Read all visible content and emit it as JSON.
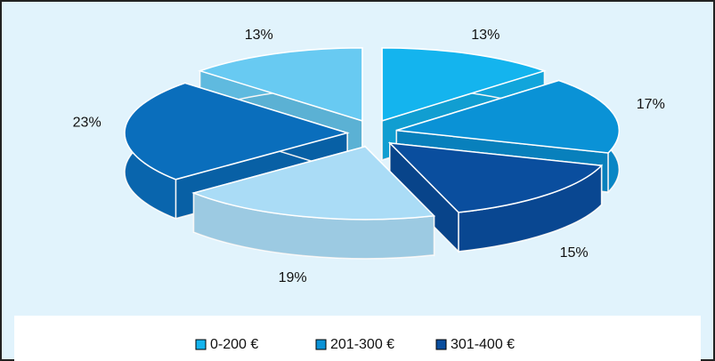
{
  "chart_data": {
    "type": "pie",
    "categories": [
      "0-200 €",
      "201-300 €",
      "301-400 €",
      null,
      null,
      null
    ],
    "values": [
      13,
      17,
      15,
      19,
      23,
      13
    ],
    "value_labels": [
      "13%",
      "17%",
      "15%",
      "19%",
      "23%",
      "13%"
    ],
    "colors": [
      "#14b4ee",
      "#0a92d6",
      "#0a4e9e",
      "#aadcf6",
      "#0a6ebc",
      "#68caf2"
    ],
    "legend": "bottom"
  }
}
